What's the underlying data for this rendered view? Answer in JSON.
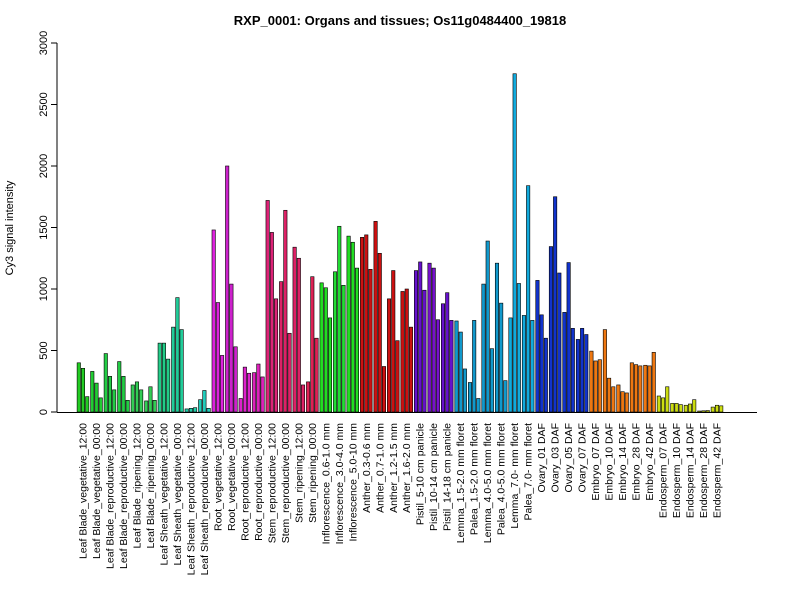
{
  "chart_data": {
    "type": "bar",
    "title": "RXP_0001: Organs and tissues; Os11g0484400_19818",
    "xlabel": "",
    "ylabel": "Cy3 signal intensity",
    "ylim": [
      0,
      3000
    ],
    "yticks": [
      0,
      500,
      1000,
      1500,
      2000,
      2500,
      3000
    ],
    "grid": false,
    "legend": "none",
    "categories": [
      "Leaf Blade_vegetative_12:00",
      "Leaf Blade_vegetative_00:00",
      "Leaf Blade_reproductive_12:00",
      "Leaf Blade_reproductive_00:00",
      "Leaf Blade_ripening_12:00",
      "Leaf Blade_ripening_00:00",
      "Leaf Sheath_vegetative_12:00",
      "Leaf Sheath_vegetative_00:00",
      "Leaf Sheath_reproductive_12:00",
      "Leaf Sheath_reproductive_00:00",
      "Root_vegetative_12:00",
      "Root_vegetative_00:00",
      "Root_reproductive_12:00",
      "Root_reproductive_00:00",
      "Stem_reproductive_12:00",
      "Stem_reproductive_00:00",
      "Stem_ripening_12:00",
      "Stem_ripening_00:00",
      "Inflorescence_0.6-1.0 mm",
      "Inflorescence_3.0-4.0 mm",
      "Inflorescence_5.0-10 mm",
      "Anther_0.3-0.6 mm",
      "Anther_0.7-1.0 mm",
      "Anther_1.2-1.5 mm",
      "Anther_1.6-2.0 mm",
      "Pistil_5-10 cm panicle",
      "Pistil_10-14 cm panicle",
      "Pistil_14-18 cm panicle",
      "Lemma_1.5-2.0 mm floret",
      "Palea_1.5-2.0 mm floret",
      "Lemma_4.0-5.0 mm floret",
      "Palea_4.0-5.0 mm floret",
      "Lemma_7.0- mm floret",
      "Palea_7.0- mm floret",
      "Ovary_01 DAF",
      "Ovary_03 DAF",
      "Ovary_05 DAF",
      "Ovary_07 DAF",
      "Embryo_07 DAF",
      "Embryo_10 DAF",
      "Embryo_14 DAF",
      "Embryo_28 DAF",
      "Embryo_42 DAF",
      "Endosperm_07 DAF",
      "Endosperm_10 DAF",
      "Endosperm_14 DAF",
      "Endosperm_28 DAF",
      "Endosperm_42 DAF"
    ],
    "groups": [
      {
        "color": "#22cc22",
        "values": [
          400,
          355,
          125
        ]
      },
      {
        "color": "#22cc33",
        "values": [
          330,
          235,
          115
        ]
      },
      {
        "color": "#22cc44",
        "values": [
          475,
          290,
          180
        ]
      },
      {
        "color": "#22cc44",
        "values": [
          410,
          290,
          95
        ]
      },
      {
        "color": "#33cc55",
        "values": [
          220,
          245,
          180
        ]
      },
      {
        "color": "#33cc55",
        "values": [
          90,
          205,
          95
        ]
      },
      {
        "color": "#22cc88",
        "values": [
          560,
          560,
          430
        ]
      },
      {
        "color": "#22cc99",
        "values": [
          690,
          930,
          670
        ]
      },
      {
        "color": "#22ccaa",
        "values": [
          25,
          30,
          35
        ]
      },
      {
        "color": "#22ccbb",
        "values": [
          100,
          175,
          30
        ]
      },
      {
        "color": "#dd22dd",
        "values": [
          1480,
          890,
          460
        ]
      },
      {
        "color": "#cc22cc",
        "values": [
          2000,
          1040,
          530
        ]
      },
      {
        "color": "#dd22cc",
        "values": [
          110,
          365,
          315
        ]
      },
      {
        "color": "#dd22bb",
        "values": [
          320,
          390,
          285
        ]
      },
      {
        "color": "#dd2277",
        "values": [
          1720,
          1460,
          920
        ]
      },
      {
        "color": "#dd2266",
        "values": [
          1060,
          1640,
          640
        ]
      },
      {
        "color": "#dd2266",
        "values": [
          1340,
          1250,
          220
        ]
      },
      {
        "color": "#dd2255",
        "values": [
          245,
          1100,
          600
        ]
      },
      {
        "color": "#22dd22",
        "values": [
          1050,
          1010,
          765
        ]
      },
      {
        "color": "#22dd33",
        "values": [
          1140,
          1510,
          1030
        ]
      },
      {
        "color": "#22dd22",
        "values": [
          1430,
          1380,
          1170
        ]
      },
      {
        "color": "#cc1111",
        "values": [
          1420,
          1440,
          1160
        ]
      },
      {
        "color": "#cc1111",
        "values": [
          1550,
          1290,
          370
        ]
      },
      {
        "color": "#cc1111",
        "values": [
          920,
          1150,
          580
        ]
      },
      {
        "color": "#cc1111",
        "values": [
          980,
          1000,
          690
        ]
      },
      {
        "color": "#6611cc",
        "values": [
          1150,
          1220,
          990
        ]
      },
      {
        "color": "#7711cc",
        "values": [
          1210,
          1170,
          750
        ]
      },
      {
        "color": "#6611cc",
        "values": [
          880,
          970,
          745
        ]
      },
      {
        "color": "#1199cc",
        "values": [
          740,
          650,
          350
        ]
      },
      {
        "color": "#1199cc",
        "values": [
          240,
          745,
          110
        ]
      },
      {
        "color": "#1199cc",
        "values": [
          1040,
          1390,
          515
        ]
      },
      {
        "color": "#1199cc",
        "values": [
          1210,
          885,
          255
        ]
      },
      {
        "color": "#11aadd",
        "values": [
          765,
          2750,
          1045
        ]
      },
      {
        "color": "#11aadd",
        "values": [
          785,
          1840,
          745
        ]
      },
      {
        "color": "#1133cc",
        "values": [
          1070,
          790,
          600
        ]
      },
      {
        "color": "#1133cc",
        "values": [
          1345,
          1750,
          1130
        ]
      },
      {
        "color": "#1133cc",
        "values": [
          810,
          1215,
          680
        ]
      },
      {
        "color": "#1133cc",
        "values": [
          590,
          680,
          630
        ]
      },
      {
        "color": "#ee7711",
        "values": [
          495,
          415,
          425
        ]
      },
      {
        "color": "#ee7711",
        "values": [
          670,
          275,
          205
        ]
      },
      {
        "color": "#ee7711",
        "values": [
          220,
          165,
          155
        ]
      },
      {
        "color": "#ee7711",
        "values": [
          400,
          385,
          375
        ]
      },
      {
        "color": "#ee7711",
        "values": [
          380,
          375,
          485
        ]
      },
      {
        "color": "#ccdd11",
        "values": [
          130,
          115,
          205
        ]
      },
      {
        "color": "#ccdd11",
        "values": [
          70,
          70,
          60
        ]
      },
      {
        "color": "#ccdd11",
        "values": [
          55,
          65,
          100
        ]
      },
      {
        "color": "#ccdd11",
        "values": [
          8,
          10,
          12
        ]
      },
      {
        "color": "#ccdd11",
        "values": [
          40,
          55,
          50
        ]
      }
    ]
  }
}
